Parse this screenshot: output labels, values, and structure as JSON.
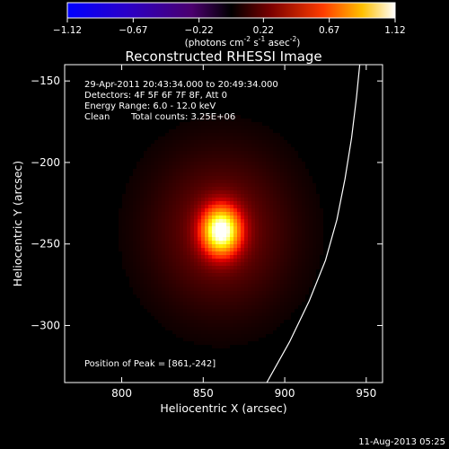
{
  "colorbar": {
    "ticks": [
      "-1.12",
      "-0.67",
      "-0.22",
      "0.22",
      "0.67",
      "1.12"
    ],
    "range": [
      -1.12,
      1.12
    ],
    "unit_prefix": "(photons cm",
    "unit_sup1": "-2",
    "unit_mid1": " s",
    "unit_sup2": "-1",
    "unit_mid2": " asec",
    "unit_sup3": "-2",
    "unit_suffix": ")"
  },
  "chart_data": {
    "type": "heatmap",
    "title": "Reconstructed RHESSI Image",
    "xlabel": "Heliocentric X (arcsec)",
    "ylabel": "Heliocentric Y (arcsec)",
    "xlim": [
      765,
      960
    ],
    "ylim": [
      -335,
      -140
    ],
    "x_ticks": [
      800,
      850,
      900,
      950
    ],
    "y_ticks": [
      -150,
      -200,
      -250,
      -300
    ],
    "colormap": "red-temperature",
    "source": {
      "peak": [
        861,
        -242
      ],
      "sigma_x": 8,
      "sigma_y": 10,
      "halo_sigma_x": 30,
      "halo_sigma_y": 34
    },
    "limb_curve": [
      [
        889,
        -335
      ],
      [
        903,
        -310
      ],
      [
        915,
        -285
      ],
      [
        925,
        -260
      ],
      [
        932,
        -235
      ],
      [
        937,
        -210
      ],
      [
        941,
        -185
      ],
      [
        944,
        -160
      ],
      [
        946,
        -140
      ]
    ],
    "annotations": {
      "time": "29-Apr-2011 20:43:34.000 to 20:49:34.000",
      "detectors": "Detectors: 4F 5F 6F 7F 8F, Att 0",
      "energy": "Energy Range: 6.0 - 12.0 keV",
      "method": "Clean",
      "counts": "Total counts: 3.25E+06",
      "peak_label": "Position of Peak = [861,-242]"
    }
  },
  "footer": {
    "date": "11-Aug-2013 05:25"
  }
}
